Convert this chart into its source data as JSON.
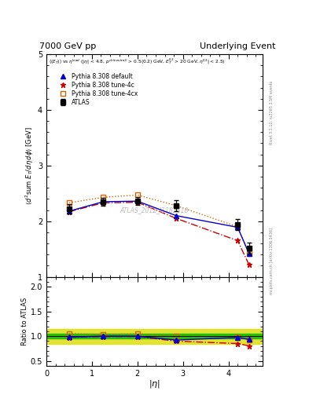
{
  "title_left": "7000 GeV pp",
  "title_right": "Underlying Event",
  "xlabel": "|\\u03b7|",
  "ylabel_main": "\\u27e8d\\u00b2sum E_T / d\\u03b7 d\\u03c6\\u27e9 [GeV]",
  "ylabel_ratio": "Ratio to ATLAS",
  "subtitle": "\\u27e8(E_T)\\u27e9 vs \\u03b7^{lead} (|\\u03b7| < 4.8, p^{ch(neutral)} > 0.5(0.2) GeV, E_T^{l|2} > 20 GeV, \\u03b7^{l|2}| < 2.5)",
  "watermark": "ATLAS_2012_I1183818",
  "right_label_top": "Rivet 3.1.10, \\u2265 3.5M events",
  "right_label_bottom": "mcplots.cern.ch [arXiv:1306.3436]",
  "eta_values": [
    0.5,
    1.25,
    2.0,
    2.85,
    4.2,
    4.45
  ],
  "atlas_data": [
    2.22,
    2.35,
    2.36,
    2.28,
    1.94,
    1.52
  ],
  "atlas_err": [
    0.08,
    0.07,
    0.07,
    0.1,
    0.1,
    0.1
  ],
  "pythia_default": [
    2.18,
    2.35,
    2.36,
    2.1,
    1.89,
    1.42
  ],
  "pythia_4c": [
    2.17,
    2.33,
    2.34,
    2.05,
    1.65,
    1.22
  ],
  "pythia_4cx": [
    2.33,
    2.43,
    2.47,
    2.28,
    1.9,
    1.41
  ],
  "ratio_default": [
    0.982,
    1.0,
    1.0,
    0.921,
    0.974,
    0.934
  ],
  "ratio_4c": [
    0.977,
    0.991,
    0.992,
    0.899,
    0.851,
    0.803
  ],
  "ratio_4cx": [
    1.05,
    1.034,
    1.047,
    1.0,
    0.979,
    0.927
  ],
  "atlas_ratio_err_inner": 0.05,
  "atlas_ratio_err_outer": 0.15,
  "main_ylim": [
    1.0,
    5.0
  ],
  "ratio_ylim": [
    0.4,
    2.2
  ],
  "ratio_yticks": [
    0.5,
    1.0,
    1.5,
    2.0
  ],
  "main_yticks": [
    1,
    2,
    3,
    4,
    5
  ],
  "xlim": [
    0.0,
    4.75
  ],
  "xticks": [
    0,
    1,
    2,
    3,
    4
  ],
  "color_default": "#0000cc",
  "color_4c": "#cc0000",
  "color_4cx": "#cc6600",
  "color_atlas": "#000000",
  "color_inner_band": "#00bb00",
  "color_outer_band": "#dddd00"
}
